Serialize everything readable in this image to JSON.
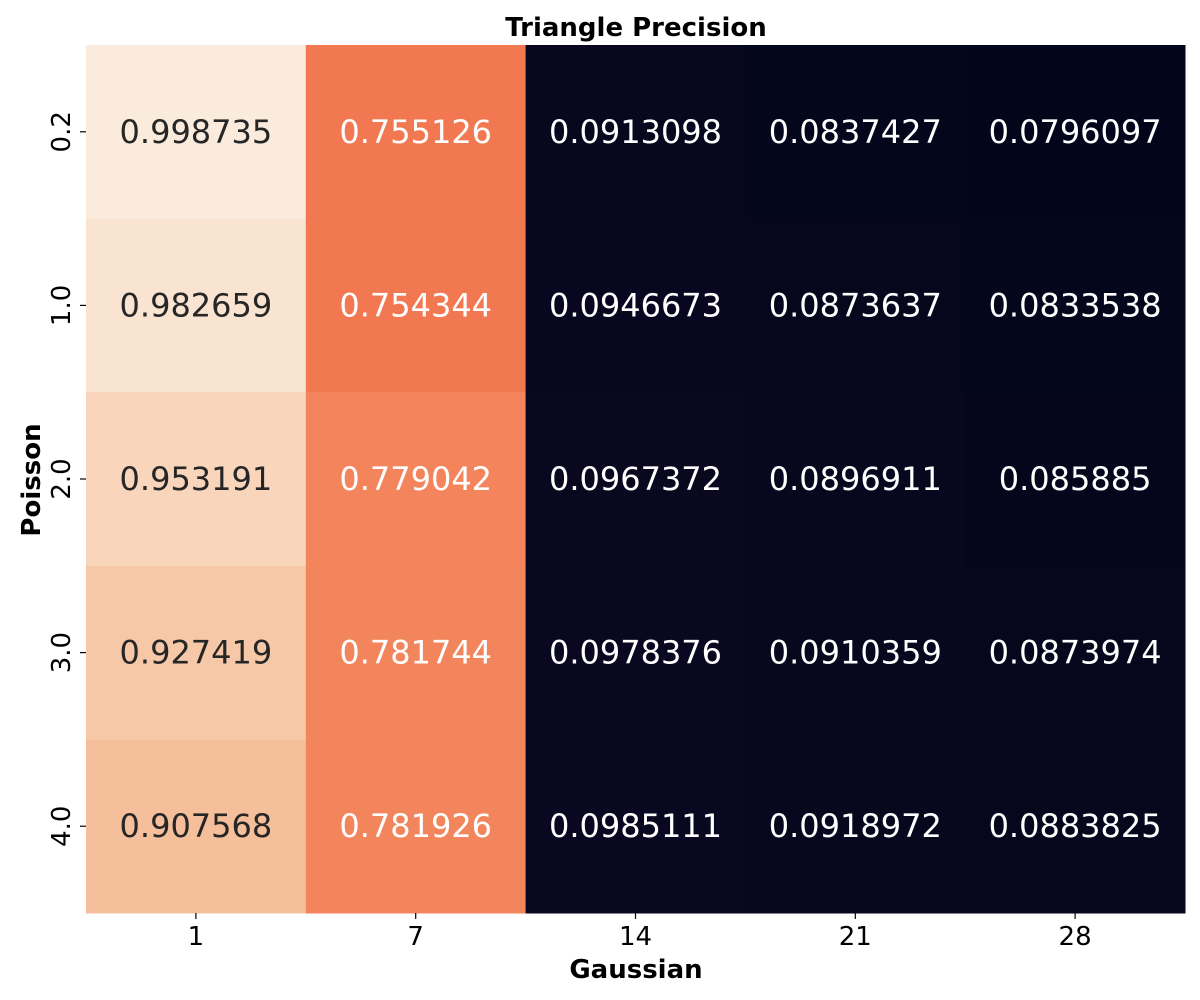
{
  "chart_data": {
    "type": "heatmap",
    "title": "Triangle Precision",
    "xlabel": "Gaussian",
    "ylabel": "Poisson",
    "x_categories": [
      "1",
      "7",
      "14",
      "21",
      "28"
    ],
    "y_categories": [
      "0.2",
      "1.0",
      "2.0",
      "3.0",
      "4.0"
    ],
    "values": [
      [
        0.998735,
        0.755126,
        0.0913098,
        0.0837427,
        0.0796097
      ],
      [
        0.982659,
        0.754344,
        0.0946673,
        0.0873637,
        0.0833538
      ],
      [
        0.953191,
        0.779042,
        0.0967372,
        0.0896911,
        0.085885
      ],
      [
        0.927419,
        0.781744,
        0.0978376,
        0.0910359,
        0.0873974
      ],
      [
        0.907568,
        0.781926,
        0.0985111,
        0.0918972,
        0.0883825
      ]
    ],
    "value_labels": [
      [
        "0.998735",
        "0.755126",
        "0.0913098",
        "0.0837427",
        "0.0796097"
      ],
      [
        "0.982659",
        "0.754344",
        "0.0946673",
        "0.0873637",
        "0.0833538"
      ],
      [
        "0.953191",
        "0.779042",
        "0.0967372",
        "0.0896911",
        "0.085885"
      ],
      [
        "0.927419",
        "0.781744",
        "0.0978376",
        "0.0910359",
        "0.0873974"
      ],
      [
        "0.907568",
        "0.781926",
        "0.0985111",
        "0.0918972",
        "0.0883825"
      ]
    ],
    "colormap": "rocket",
    "colorbar": false,
    "grid": false
  }
}
